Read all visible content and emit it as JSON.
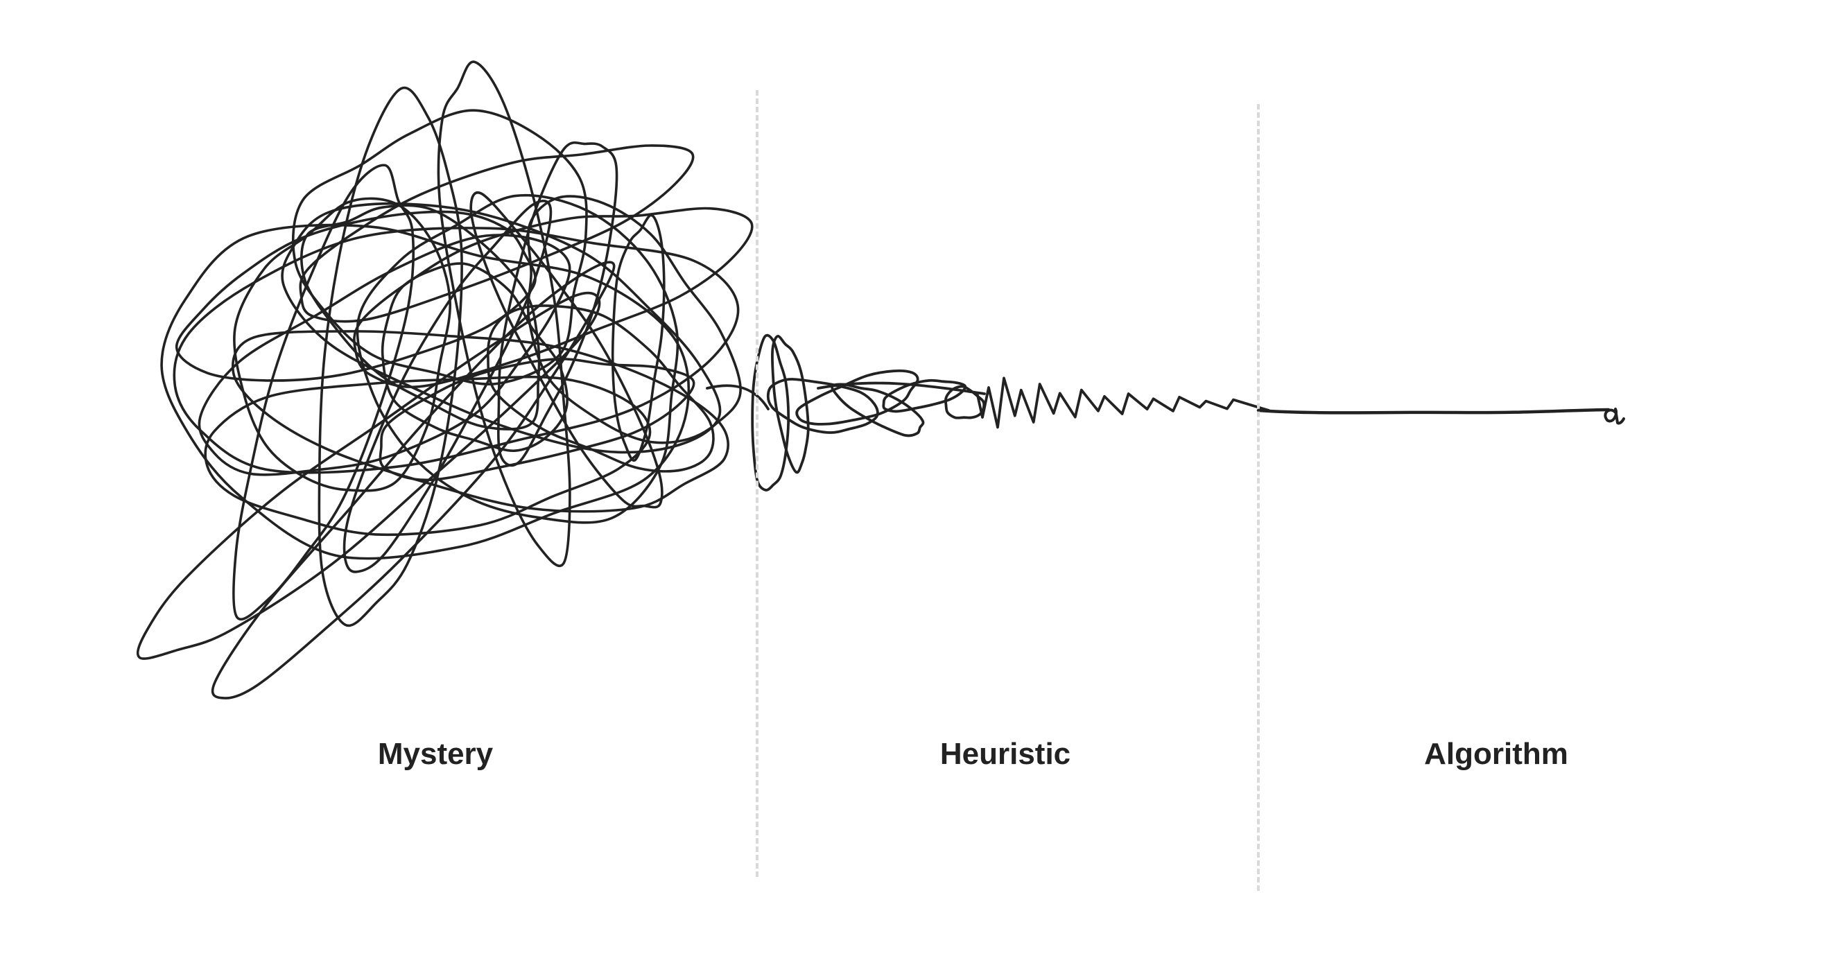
{
  "stages": [
    {
      "id": "mystery",
      "label": "Mystery"
    },
    {
      "id": "heuristic",
      "label": "Heuristic"
    },
    {
      "id": "algorithm",
      "label": "Algorithm"
    }
  ],
  "stroke_color": "#222222",
  "divider_color": "#d9d9d9",
  "background_color": "#ffffff"
}
